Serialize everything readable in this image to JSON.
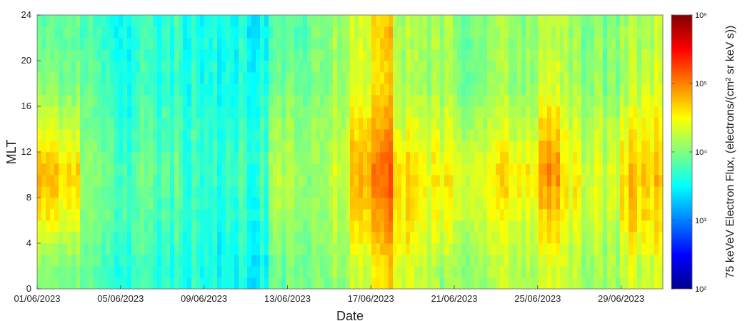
{
  "chart_data": {
    "type": "heatmap",
    "xlabel": "Date",
    "ylabel": "MLT",
    "x_range": [
      "01/06/2023",
      "01/07/2023"
    ],
    "ylim": [
      0,
      24
    ],
    "x_tick_labels": [
      "01/06/2023",
      "05/06/2023",
      "09/06/2023",
      "13/06/2023",
      "17/06/2023",
      "21/06/2023",
      "25/06/2023",
      "29/06/2023"
    ],
    "y_ticks": [
      0,
      4,
      8,
      12,
      16,
      20,
      24
    ],
    "grid": false,
    "colormap": "jet",
    "colorbar": {
      "label": "75 keVeV Electron Flux, (electrons/(cm² sr keV s))",
      "scale": "log",
      "range": [
        100,
        1000000
      ],
      "tick_labels": [
        "10²",
        "10³",
        "10⁴",
        "10⁵",
        "10⁶"
      ]
    },
    "daily_log_flux_by_mlt_band": {
      "mlt_bands": [
        "0-4",
        "4-8",
        "8-12",
        "12-16",
        "16-20",
        "20-24"
      ],
      "days": [
        "01/06",
        "02/06",
        "03/06",
        "04/06",
        "05/06",
        "06/06",
        "07/06",
        "08/06",
        "09/06",
        "10/06",
        "11/06",
        "12/06",
        "13/06",
        "14/06",
        "15/06",
        "16/06",
        "17/06",
        "18/06",
        "19/06",
        "20/06",
        "21/06",
        "22/06",
        "23/06",
        "24/06",
        "25/06",
        "26/06",
        "27/06",
        "28/06",
        "29/06",
        "30/06"
      ],
      "values": [
        [
          4.0,
          4.5,
          4.8,
          4.4,
          4.0,
          3.9
        ],
        [
          3.9,
          4.3,
          4.6,
          4.2,
          3.9,
          3.8
        ],
        [
          3.8,
          3.9,
          4.0,
          3.9,
          3.8,
          3.7
        ],
        [
          3.7,
          3.8,
          3.9,
          3.8,
          3.7,
          3.6
        ],
        [
          3.7,
          3.8,
          3.8,
          3.7,
          3.6,
          3.6
        ],
        [
          3.7,
          3.8,
          3.9,
          3.8,
          3.7,
          3.7
        ],
        [
          3.7,
          3.8,
          3.9,
          3.8,
          3.7,
          3.7
        ],
        [
          3.6,
          3.7,
          3.7,
          3.7,
          3.6,
          3.6
        ],
        [
          3.6,
          3.6,
          3.7,
          3.7,
          3.6,
          3.6
        ],
        [
          3.6,
          3.7,
          3.8,
          3.7,
          3.6,
          3.6
        ],
        [
          3.5,
          3.6,
          3.7,
          3.7,
          3.6,
          3.5
        ],
        [
          3.9,
          4.1,
          4.2,
          4.1,
          3.9,
          3.8
        ],
        [
          4.0,
          4.1,
          4.2,
          4.1,
          4.0,
          3.9
        ],
        [
          4.0,
          4.1,
          4.1,
          4.1,
          4.0,
          4.0
        ],
        [
          4.1,
          4.2,
          4.3,
          4.2,
          4.1,
          4.1
        ],
        [
          4.3,
          4.6,
          4.8,
          4.6,
          4.3,
          4.3
        ],
        [
          4.6,
          4.9,
          5.1,
          4.9,
          4.6,
          4.7
        ],
        [
          4.4,
          4.6,
          4.7,
          4.4,
          4.2,
          4.2
        ],
        [
          4.2,
          4.4,
          4.5,
          4.3,
          4.1,
          4.1
        ],
        [
          4.1,
          4.4,
          4.5,
          4.3,
          4.1,
          4.1
        ],
        [
          4.1,
          4.3,
          4.4,
          4.2,
          4.0,
          4.0
        ],
        [
          4.1,
          4.3,
          4.4,
          4.2,
          4.0,
          4.0
        ],
        [
          4.2,
          4.4,
          4.6,
          4.3,
          4.1,
          4.1
        ],
        [
          4.2,
          4.4,
          4.6,
          4.3,
          4.1,
          4.1
        ],
        [
          4.3,
          4.6,
          4.9,
          4.6,
          4.3,
          4.2
        ],
        [
          4.2,
          4.4,
          4.5,
          4.3,
          4.1,
          4.1
        ],
        [
          4.1,
          4.3,
          4.3,
          4.2,
          4.0,
          4.0
        ],
        [
          4.1,
          4.2,
          4.3,
          4.2,
          4.0,
          4.0
        ],
        [
          4.3,
          4.6,
          4.7,
          4.5,
          4.2,
          4.2
        ],
        [
          4.3,
          4.6,
          4.7,
          4.5,
          4.3,
          4.2
        ]
      ]
    }
  }
}
